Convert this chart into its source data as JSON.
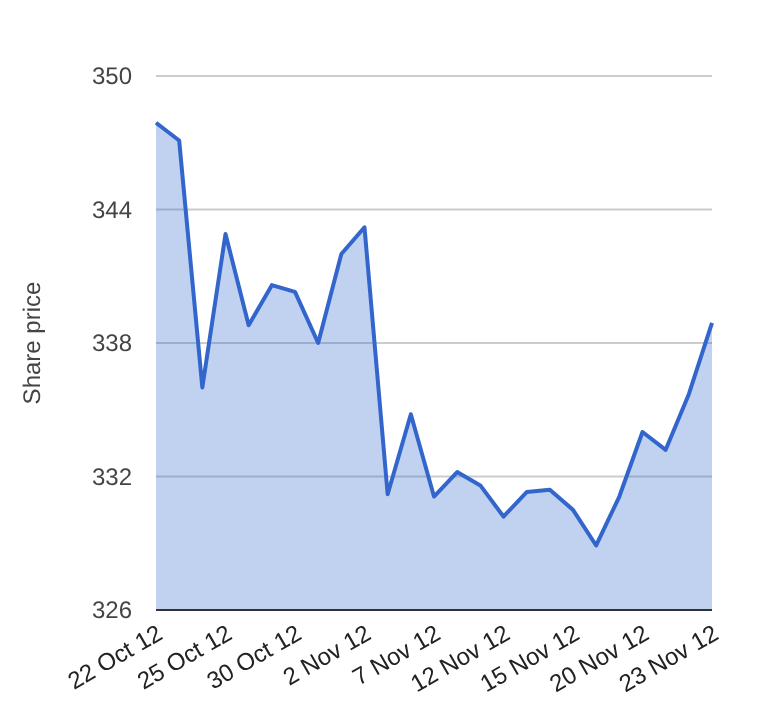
{
  "chart_data": {
    "type": "area",
    "ylabel": "Share price",
    "categories": [
      "22 Oct 12",
      null,
      null,
      "25 Oct 12",
      null,
      null,
      "30 Oct 12",
      null,
      null,
      "2 Nov 12",
      null,
      null,
      "7 Nov 12",
      null,
      null,
      "12 Nov 12",
      null,
      null,
      "15 Nov 12",
      null,
      null,
      "20 Nov 12",
      null,
      null,
      "23 Nov 12"
    ],
    "series": [
      {
        "color": "#3366cc",
        "values": [
          347.9,
          347.1,
          336.0,
          342.9,
          338.8,
          340.6,
          340.3,
          338.0,
          342.0,
          343.2,
          331.2,
          334.8,
          331.1,
          332.2,
          331.6,
          330.2,
          331.3,
          331.4,
          330.5,
          328.9,
          331.1,
          334.0,
          333.2,
          335.7,
          338.9
        ]
      }
    ],
    "ylim": [
      326,
      350
    ],
    "yticks": [
      326,
      332,
      338,
      344,
      350
    ],
    "grid": "y",
    "marker": "none"
  }
}
